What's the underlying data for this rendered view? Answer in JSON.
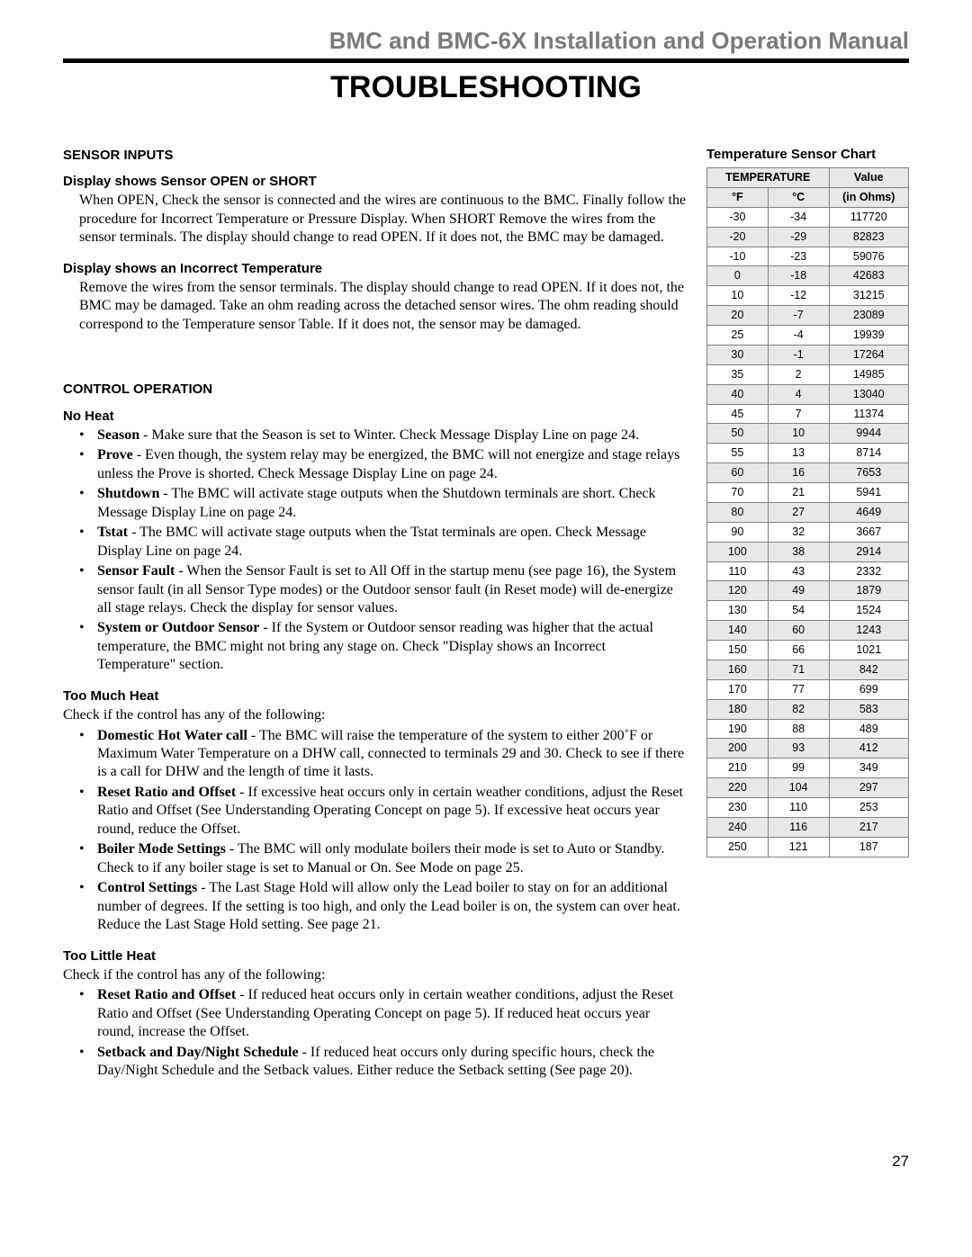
{
  "header": {
    "running_title": "BMC and BMC-6X Installation and Operation Manual",
    "page_title": "TROUBLESHOOTING"
  },
  "sensor_inputs": {
    "heading": "SENSOR INPUTS",
    "open_short": {
      "heading": "Display shows Sensor OPEN or SHORT",
      "body": "When OPEN, Check the sensor is connected and the wires are continuous to the BMC.  Finally follow the procedure for Incorrect Temperature or Pressure Display.  When SHORT Remove the wires from the sensor terminals.  The display should change to read OPEN.  If it does not, the BMC may be damaged."
    },
    "incorrect_temp": {
      "heading": "Display shows an Incorrect Temperature",
      "body": "Remove the wires from the sensor terminals.  The display should change to read OPEN.  If it does not, the BMC may be damaged.  Take an ohm reading across the detached sensor wires.  The ohm reading should correspond to the Temperature sensor Table.  If it does not, the sensor may be damaged."
    }
  },
  "control_operation": {
    "heading": "CONTROL OPERATION",
    "no_heat": {
      "heading": "No Heat",
      "items": [
        {
          "label": "Season",
          "text": " - Make sure that the Season is set to Winter.  Check Message Display Line on page 24."
        },
        {
          "label": "Prove",
          "text": " - Even though, the system relay may be energized, the BMC will not energize and stage relays unless the Prove is shorted.  Check Message Display Line on page 24."
        },
        {
          "label": "Shutdown",
          "text": " - The BMC will activate stage outputs when the Shutdown terminals are short.  Check Message Display Line on page 24."
        },
        {
          "label": "Tstat",
          "text": " - The BMC will activate stage outputs when the Tstat terminals are open.  Check Message Display Line on page 24."
        },
        {
          "label": "Sensor Fault",
          "text": " - When the Sensor Fault is set to All Off in the startup menu (see page 16), the System sensor fault (in all Sensor Type modes) or the Outdoor sensor fault (in Reset mode) will de-energize all stage relays.  Check the display for sensor values."
        },
        {
          "label": "System or Outdoor Sensor",
          "text": " - If the System or Outdoor sensor reading was higher that the actual temperature, the BMC might not bring any stage on.  Check \"Display shows an Incorrect Temperature\" section."
        }
      ]
    },
    "too_much_heat": {
      "heading": "Too Much Heat",
      "intro": "Check if the control has any of the following:",
      "items": [
        {
          "label": "Domestic Hot Water call",
          "text": " - The BMC will raise the temperature of the system to either 200˚F or Maximum Water Temperature on a DHW call, connected to terminals 29 and 30.  Check to see if there is a call for DHW and the length of time it lasts."
        },
        {
          "label": "Reset Ratio and Offset",
          "text": " - If excessive heat occurs only in certain weather conditions, adjust the Reset Ratio and Offset (See Understanding Operating Concept on page 5).  If excessive heat occurs year round, reduce the Offset."
        },
        {
          "label": "Boiler Mode Settings",
          "text": " - The BMC will only modulate boilers their mode is set to Auto or Standby.  Check to if any boiler stage is set to Manual or On.  See Mode on page 25."
        },
        {
          "label": "Control Settings",
          "text": " - The Last Stage Hold will allow only the Lead boiler to stay on for an additional number of degrees.  If the setting is too high, and only the Lead boiler is on, the system can over heat.  Reduce the Last Stage Hold setting.  See page 21."
        }
      ]
    },
    "too_little_heat": {
      "heading": "Too Little Heat",
      "intro": "Check if the control has any of the following:",
      "items": [
        {
          "label": "Reset Ratio and Offset",
          "text": " - If reduced heat occurs only in certain weather conditions, adjust the Reset Ratio and Offset (See Understanding Operating Concept on page 5).  If reduced heat occurs year round, increase the Offset."
        },
        {
          "label": "Setback and Day/Night Schedule",
          "text": " - If reduced heat occurs only during specific hours, check the Day/Night Schedule and the Setback values.  Either reduce the Setback setting (See page 20)."
        }
      ]
    }
  },
  "sensor_chart": {
    "title": "Temperature Sensor Chart",
    "header": {
      "temp_span": "TEMPERATURE",
      "value": "Value",
      "f": "°F",
      "c": "°C",
      "ohms": "(in Ohms)"
    },
    "rows": [
      {
        "f": "-30",
        "c": "-34",
        "v": "117720"
      },
      {
        "f": "-20",
        "c": "-29",
        "v": "82823"
      },
      {
        "f": "-10",
        "c": "-23",
        "v": "59076"
      },
      {
        "f": "0",
        "c": "-18",
        "v": "42683"
      },
      {
        "f": "10",
        "c": "-12",
        "v": "31215"
      },
      {
        "f": "20",
        "c": "-7",
        "v": "23089"
      },
      {
        "f": "25",
        "c": "-4",
        "v": "19939"
      },
      {
        "f": "30",
        "c": "-1",
        "v": "17264"
      },
      {
        "f": "35",
        "c": "2",
        "v": "14985"
      },
      {
        "f": "40",
        "c": "4",
        "v": "13040"
      },
      {
        "f": "45",
        "c": "7",
        "v": "11374"
      },
      {
        "f": "50",
        "c": "10",
        "v": "9944"
      },
      {
        "f": "55",
        "c": "13",
        "v": "8714"
      },
      {
        "f": "60",
        "c": "16",
        "v": "7653"
      },
      {
        "f": "70",
        "c": "21",
        "v": "5941"
      },
      {
        "f": "80",
        "c": "27",
        "v": "4649"
      },
      {
        "f": "90",
        "c": "32",
        "v": "3667"
      },
      {
        "f": "100",
        "c": "38",
        "v": "2914"
      },
      {
        "f": "110",
        "c": "43",
        "v": "2332"
      },
      {
        "f": "120",
        "c": "49",
        "v": "1879"
      },
      {
        "f": "130",
        "c": "54",
        "v": "1524"
      },
      {
        "f": "140",
        "c": "60",
        "v": "1243"
      },
      {
        "f": "150",
        "c": "66",
        "v": "1021"
      },
      {
        "f": "160",
        "c": "71",
        "v": "842"
      },
      {
        "f": "170",
        "c": "77",
        "v": "699"
      },
      {
        "f": "180",
        "c": "82",
        "v": "583"
      },
      {
        "f": "190",
        "c": "88",
        "v": "489"
      },
      {
        "f": "200",
        "c": "93",
        "v": "412"
      },
      {
        "f": "210",
        "c": "99",
        "v": "349"
      },
      {
        "f": "220",
        "c": "104",
        "v": "297"
      },
      {
        "f": "230",
        "c": "110",
        "v": "253"
      },
      {
        "f": "240",
        "c": "116",
        "v": "217"
      },
      {
        "f": "250",
        "c": "121",
        "v": "187"
      }
    ],
    "alt_row_bg": "#e8e8e8"
  },
  "page_number": "27"
}
